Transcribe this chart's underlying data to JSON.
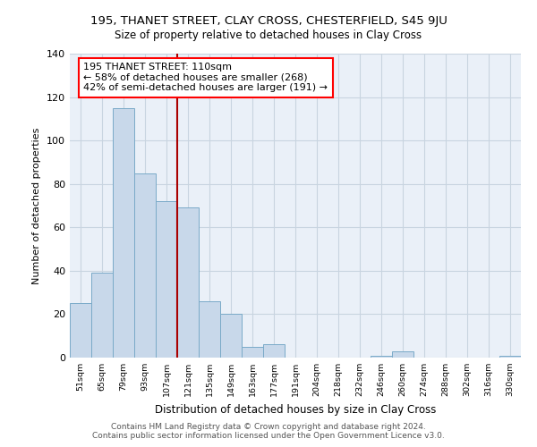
{
  "title1": "195, THANET STREET, CLAY CROSS, CHESTERFIELD, S45 9JU",
  "title2": "Size of property relative to detached houses in Clay Cross",
  "xlabel": "Distribution of detached houses by size in Clay Cross",
  "ylabel": "Number of detached properties",
  "bar_labels": [
    "51sqm",
    "65sqm",
    "79sqm",
    "93sqm",
    "107sqm",
    "121sqm",
    "135sqm",
    "149sqm",
    "163sqm",
    "177sqm",
    "191sqm",
    "204sqm",
    "218sqm",
    "232sqm",
    "246sqm",
    "260sqm",
    "274sqm",
    "288sqm",
    "302sqm",
    "316sqm",
    "330sqm"
  ],
  "bar_values": [
    25,
    39,
    115,
    85,
    72,
    69,
    26,
    20,
    5,
    6,
    0,
    0,
    0,
    0,
    1,
    3,
    0,
    0,
    0,
    0,
    1
  ],
  "bar_color": "#c8d8ea",
  "bar_edge_color": "#7aaac8",
  "vline_pos": 4.5,
  "vline_color": "#aa0000",
  "annotation_title": "195 THANET STREET: 110sqm",
  "annotation_line1": "← 58% of detached houses are smaller (268)",
  "annotation_line2": "42% of semi-detached houses are larger (191) →",
  "ylim": [
    0,
    140
  ],
  "yticks": [
    0,
    20,
    40,
    60,
    80,
    100,
    120,
    140
  ],
  "footnote1": "Contains HM Land Registry data © Crown copyright and database right 2024.",
  "footnote2": "Contains public sector information licensed under the Open Government Licence v3.0.",
  "grid_color": "#c8d4e0",
  "bg_color": "#eaf0f8"
}
